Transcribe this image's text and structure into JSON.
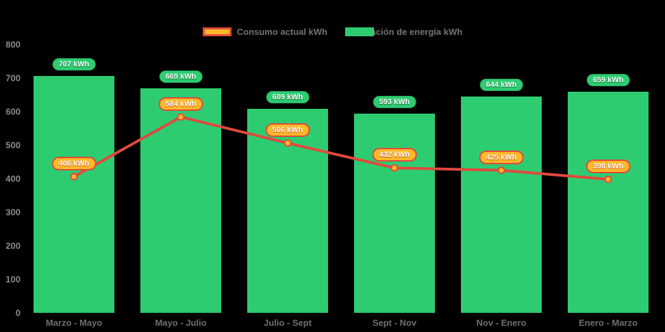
{
  "legend": {
    "items": [
      {
        "label": "Consumo actual kWh",
        "marker": "line-swatch-icon",
        "swatch_fill": "#FDB928",
        "swatch_border": "#E0493D"
      },
      {
        "label": "Generación de energía kWh",
        "marker": "bar-swatch-icon",
        "swatch_fill": "#2ECC71",
        "swatch_border": "#2ECC71"
      }
    ],
    "text_color": "#737373"
  },
  "chart_data": {
    "type": "bar+line",
    "categories": [
      "Marzo - Mayo",
      "Mayo - Julio",
      "Julio - Sept",
      "Sept - Nov",
      "Nov - Enero",
      "Enero - Marzo"
    ],
    "series": [
      {
        "name": "Generación de energía kWh",
        "type": "bar",
        "values": [
          707,
          669,
          609,
          593,
          644,
          659
        ],
        "color": "#2ECC71",
        "label_style": "green",
        "label_suffix": " kWh"
      },
      {
        "name": "Consumo actual kWh",
        "type": "line",
        "values": [
          406,
          584,
          506,
          432,
          425,
          398
        ],
        "color": "#E0493D",
        "marker_fill": "#FDB928",
        "label_style": "orange",
        "label_suffix": " kWh"
      }
    ],
    "ylim": [
      0,
      800
    ],
    "yticks": [
      800,
      700,
      600,
      500,
      400,
      300,
      200,
      100,
      0
    ],
    "grid": false,
    "legend_position": "top",
    "background": "#000000",
    "ytick_color": "#8A8A8A",
    "xtick_color": "#6E6E6E"
  }
}
